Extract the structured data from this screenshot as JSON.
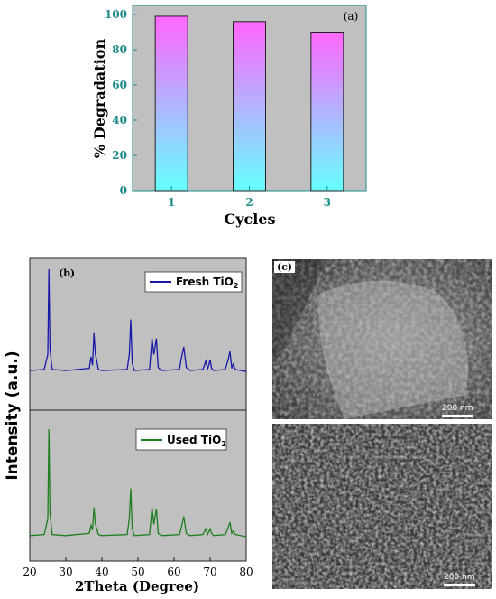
{
  "colors": {
    "plot_bg": "#c0c0c0",
    "axis_teal": "#1e8c8c",
    "bar_top": "#ff66ff",
    "bar_bottom": "#66ffff",
    "fresh_line": "#1818a8",
    "used_line": "#1e7d1e"
  },
  "chart_data": [
    {
      "type": "bar",
      "panel_label": "(a)",
      "categories": [
        "1",
        "2",
        "3"
      ],
      "values": [
        99,
        96,
        90
      ],
      "xlabel": "Cycles",
      "ylabel": "% Degradation",
      "ylim": [
        0,
        100
      ],
      "yticks": [
        "0",
        "20",
        "40",
        "60",
        "80",
        "100"
      ],
      "grid": false,
      "fill": "vertical gradient magenta to cyan"
    },
    {
      "type": "line",
      "panel_label": "(b)",
      "xlabel": "2Theta (Degree)",
      "ylabel": "Intensity (a.u.)",
      "xlim": [
        20,
        80
      ],
      "xticks": [
        "20",
        "30",
        "40",
        "50",
        "60",
        "70",
        "80"
      ],
      "series": [
        {
          "name": "Fresh TiO2",
          "legend_main": "Fresh TiO",
          "legend_sub": "2",
          "x": [
            20,
            24,
            25,
            25.3,
            25.6,
            26.2,
            30,
            36.5,
            37,
            37.4,
            37.8,
            38.2,
            38.6,
            39,
            40,
            47,
            47.6,
            48,
            48.4,
            49,
            53.2,
            53.9,
            54.4,
            55.1,
            55.6,
            56.5,
            61.5,
            62,
            62.7,
            63.4,
            64.5,
            68,
            68.8,
            69.3,
            70,
            70.4,
            71,
            74.2,
            75,
            75.5,
            76,
            76.4,
            77,
            80
          ],
          "y": [
            0.05,
            0.06,
            0.2,
            1.0,
            0.25,
            0.06,
            0.05,
            0.07,
            0.18,
            0.1,
            0.4,
            0.2,
            0.14,
            0.06,
            0.05,
            0.06,
            0.2,
            0.53,
            0.12,
            0.05,
            0.06,
            0.35,
            0.2,
            0.35,
            0.08,
            0.05,
            0.06,
            0.16,
            0.27,
            0.08,
            0.05,
            0.06,
            0.14,
            0.06,
            0.15,
            0.07,
            0.05,
            0.06,
            0.15,
            0.23,
            0.07,
            0.11,
            0.06,
            0.04
          ]
        },
        {
          "name": "Used TiO2",
          "legend_main": "Used TiO",
          "legend_sub": "2",
          "x": [
            20,
            24,
            25,
            25.3,
            25.6,
            26.2,
            30,
            36.5,
            37,
            37.4,
            37.8,
            38.2,
            38.6,
            39,
            40,
            47,
            47.6,
            48,
            48.4,
            49,
            53.2,
            53.9,
            54.4,
            55.1,
            55.6,
            56.5,
            61.5,
            62,
            62.7,
            63.4,
            64.5,
            68,
            68.8,
            69.3,
            70,
            70.4,
            71,
            74.2,
            75,
            75.5,
            76,
            76.4,
            77,
            80
          ],
          "y": [
            0.05,
            0.06,
            0.2,
            1.0,
            0.25,
            0.06,
            0.05,
            0.07,
            0.14,
            0.1,
            0.3,
            0.15,
            0.11,
            0.06,
            0.05,
            0.06,
            0.2,
            0.47,
            0.11,
            0.05,
            0.06,
            0.3,
            0.15,
            0.29,
            0.07,
            0.05,
            0.06,
            0.12,
            0.22,
            0.07,
            0.05,
            0.06,
            0.11,
            0.06,
            0.11,
            0.07,
            0.05,
            0.06,
            0.12,
            0.17,
            0.07,
            0.09,
            0.06,
            0.04
          ]
        }
      ],
      "legend_placement": "top-right of each sub-panel"
    }
  ],
  "sem": {
    "label": "(c)",
    "top_scale": "200 nm",
    "bottom_scale": "200 nm"
  }
}
